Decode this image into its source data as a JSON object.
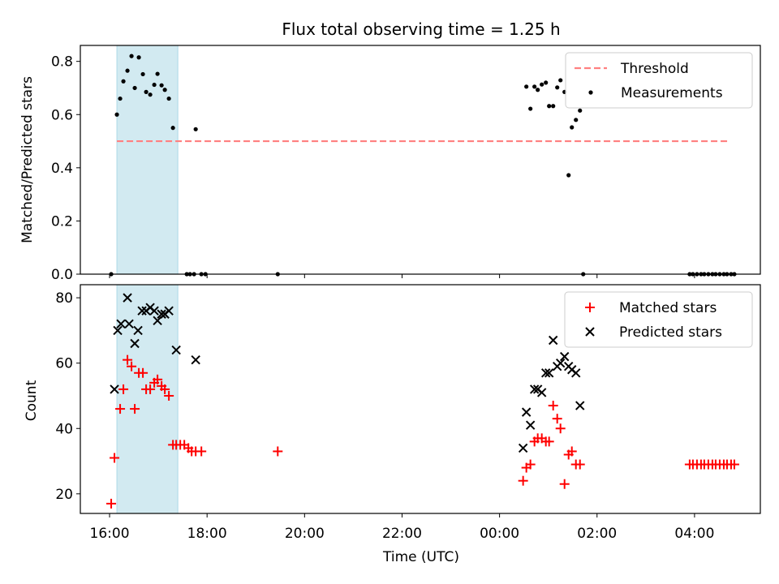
{
  "chart_data": [
    {
      "type": "scatter",
      "title": "Flux total observing time = 1.25 h",
      "xlabel": "",
      "ylabel": "Matched/Predicted stars",
      "xlim": [
        "15:24",
        "29:21"
      ],
      "ylim": [
        0,
        0.86
      ],
      "yticks": [
        0.0,
        0.2,
        0.4,
        0.6,
        0.8
      ],
      "ytick_labels": [
        "0.0",
        "0.2",
        "0.4",
        "0.6",
        "0.8"
      ],
      "shaded_interval": [
        "16:09",
        "17:24"
      ],
      "threshold": {
        "value": 0.5,
        "from": "16:09",
        "to": "28:44"
      },
      "legend": {
        "position": "top-right",
        "entries": [
          "Threshold",
          "Measurements"
        ]
      },
      "series": [
        {
          "name": "Measurements",
          "marker": "dot",
          "color": "#000000",
          "points": [
            [
              "16:02",
              0.0
            ],
            [
              "16:09",
              0.6
            ],
            [
              "16:13",
              0.66
            ],
            [
              "16:17",
              0.725
            ],
            [
              "16:22",
              0.765
            ],
            [
              "16:27",
              0.82
            ],
            [
              "16:31",
              0.7
            ],
            [
              "16:36",
              0.815
            ],
            [
              "16:41",
              0.752
            ],
            [
              "16:45",
              0.685
            ],
            [
              "16:50",
              0.675
            ],
            [
              "16:55",
              0.712
            ],
            [
              "16:59",
              0.753
            ],
            [
              "17:04",
              0.71
            ],
            [
              "17:08",
              0.693
            ],
            [
              "17:13",
              0.66
            ],
            [
              "17:18",
              0.55
            ],
            [
              "17:35",
              0.0
            ],
            [
              "17:39",
              0.0
            ],
            [
              "17:44",
              0.0
            ],
            [
              "17:46",
              0.545
            ],
            [
              "17:53",
              0.0
            ],
            [
              "17:58",
              0.0
            ],
            [
              "19:27",
              0.0
            ],
            [
              "24:33",
              0.705
            ],
            [
              "24:38",
              0.622
            ],
            [
              "24:43",
              0.705
            ],
            [
              "24:47",
              0.693
            ],
            [
              "24:52",
              0.713
            ],
            [
              "24:57",
              0.72
            ],
            [
              "25:01",
              0.632
            ],
            [
              "25:06",
              0.632
            ],
            [
              "25:11",
              0.702
            ],
            [
              "25:15",
              0.729
            ],
            [
              "25:20",
              0.685
            ],
            [
              "25:25",
              0.372
            ],
            [
              "25:29",
              0.552
            ],
            [
              "25:34",
              0.58
            ],
            [
              "25:39",
              0.615
            ],
            [
              "25:43",
              0.0
            ],
            [
              "27:54",
              0.0
            ],
            [
              "27:58",
              0.0
            ],
            [
              "28:03",
              0.0
            ],
            [
              "28:08",
              0.0
            ],
            [
              "28:12",
              0.0
            ],
            [
              "28:17",
              0.0
            ],
            [
              "28:22",
              0.0
            ],
            [
              "28:26",
              0.0
            ],
            [
              "28:31",
              0.0
            ],
            [
              "28:36",
              0.0
            ],
            [
              "28:40",
              0.0
            ],
            [
              "28:45",
              0.0
            ],
            [
              "28:49",
              0.0
            ]
          ]
        }
      ]
    },
    {
      "type": "scatter",
      "title": "",
      "xlabel": "Time (UTC)",
      "ylabel": "Count",
      "xlim": [
        "15:24",
        "29:21"
      ],
      "ylim": [
        14,
        84
      ],
      "yticks": [
        20,
        40,
        60,
        80
      ],
      "ytick_labels": [
        "20",
        "40",
        "60",
        "80"
      ],
      "xticks": [
        "16:00",
        "18:00",
        "20:00",
        "22:00",
        "24:00",
        "26:00",
        "28:00"
      ],
      "xtick_labels": [
        "16:00",
        "18:00",
        "20:00",
        "22:00",
        "00:00",
        "02:00",
        "04:00"
      ],
      "shaded_interval": [
        "16:09",
        "17:24"
      ],
      "legend": {
        "position": "top-right",
        "entries": [
          "Matched stars",
          "Predicted stars"
        ]
      },
      "series": [
        {
          "name": "Matched stars",
          "marker": "plus",
          "color": "#ff0000",
          "points": [
            [
              "16:02",
              17
            ],
            [
              "16:06",
              31
            ],
            [
              "16:13",
              46
            ],
            [
              "16:17",
              52
            ],
            [
              "16:22",
              61
            ],
            [
              "16:27",
              59
            ],
            [
              "16:31",
              46
            ],
            [
              "16:36",
              57
            ],
            [
              "16:41",
              57
            ],
            [
              "16:45",
              52
            ],
            [
              "16:50",
              52
            ],
            [
              "16:55",
              54
            ],
            [
              "16:59",
              55
            ],
            [
              "17:04",
              53
            ],
            [
              "17:08",
              52
            ],
            [
              "17:13",
              50
            ],
            [
              "17:18",
              35
            ],
            [
              "17:22",
              35
            ],
            [
              "17:27",
              35
            ],
            [
              "17:32",
              35
            ],
            [
              "17:37",
              34
            ],
            [
              "17:41",
              33
            ],
            [
              "17:46",
              33
            ],
            [
              "17:53",
              33
            ],
            [
              "19:27",
              33
            ],
            [
              "24:29",
              24
            ],
            [
              "24:33",
              28
            ],
            [
              "24:38",
              29
            ],
            [
              "24:43",
              36
            ],
            [
              "24:47",
              37
            ],
            [
              "24:52",
              37
            ],
            [
              "24:57",
              36
            ],
            [
              "25:01",
              36
            ],
            [
              "25:06",
              47
            ],
            [
              "25:11",
              43
            ],
            [
              "25:15",
              40
            ],
            [
              "25:20",
              23
            ],
            [
              "25:25",
              32
            ],
            [
              "25:29",
              33
            ],
            [
              "25:34",
              29
            ],
            [
              "25:39",
              29
            ],
            [
              "27:54",
              29
            ],
            [
              "27:58",
              29
            ],
            [
              "28:03",
              29
            ],
            [
              "28:08",
              29
            ],
            [
              "28:12",
              29
            ],
            [
              "28:17",
              29
            ],
            [
              "28:22",
              29
            ],
            [
              "28:26",
              29
            ],
            [
              "28:31",
              29
            ],
            [
              "28:36",
              29
            ],
            [
              "28:40",
              29
            ],
            [
              "28:45",
              29
            ],
            [
              "28:49",
              29
            ]
          ]
        },
        {
          "name": "Predicted stars",
          "marker": "x",
          "color": "#000000",
          "points": [
            [
              "16:06",
              52
            ],
            [
              "16:10",
              70
            ],
            [
              "16:14",
              72
            ],
            [
              "16:22",
              80
            ],
            [
              "16:24",
              72
            ],
            [
              "16:31",
              66
            ],
            [
              "16:35",
              70
            ],
            [
              "16:40",
              76
            ],
            [
              "16:45",
              76
            ],
            [
              "16:50",
              77
            ],
            [
              "16:55",
              76
            ],
            [
              "16:59",
              73
            ],
            [
              "17:04",
              75
            ],
            [
              "17:08",
              75
            ],
            [
              "17:13",
              76
            ],
            [
              "17:22",
              64
            ],
            [
              "17:46",
              61
            ],
            [
              "24:29",
              34
            ],
            [
              "24:33",
              45
            ],
            [
              "24:38",
              41
            ],
            [
              "24:43",
              52
            ],
            [
              "24:47",
              52
            ],
            [
              "24:52",
              51
            ],
            [
              "24:57",
              57
            ],
            [
              "25:01",
              57
            ],
            [
              "25:06",
              67
            ],
            [
              "25:11",
              59
            ],
            [
              "25:15",
              60
            ],
            [
              "25:20",
              62
            ],
            [
              "25:25",
              59
            ],
            [
              "25:29",
              58
            ],
            [
              "25:34",
              57
            ],
            [
              "25:39",
              47
            ]
          ]
        }
      ]
    }
  ],
  "colors": {
    "shade": "#add8e6",
    "threshold": "#ff8080",
    "measurements": "#000000",
    "matched": "#ff0000",
    "predicted": "#000000"
  }
}
